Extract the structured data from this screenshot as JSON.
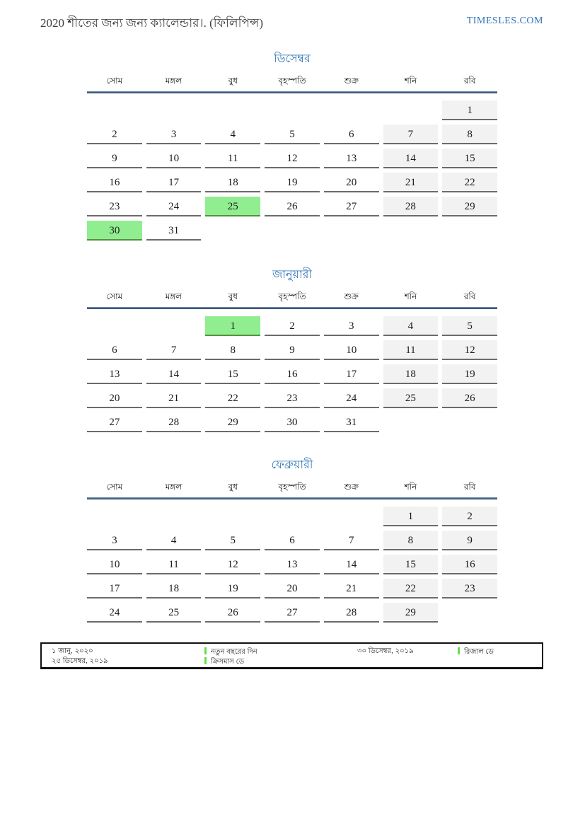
{
  "header": {
    "title": "2020 শীতের জন্য জন্য ক্যালেন্ডার।. (ফিলিপিন্স)",
    "site": "TIMESLES.COM"
  },
  "weekdays": [
    "সোম",
    "মঙ্গল",
    "বুধ",
    "বৃহস্পতি",
    "শুক্র",
    "শনি",
    "রবি"
  ],
  "months": [
    {
      "title": "ডিসেম্বর",
      "rows": [
        [
          null,
          null,
          null,
          null,
          null,
          null,
          {
            "d": "1",
            "t": "w"
          }
        ],
        [
          {
            "d": "2",
            "t": "n"
          },
          {
            "d": "3",
            "t": "n"
          },
          {
            "d": "4",
            "t": "n"
          },
          {
            "d": "5",
            "t": "n"
          },
          {
            "d": "6",
            "t": "n"
          },
          {
            "d": "7",
            "t": "w"
          },
          {
            "d": "8",
            "t": "w"
          }
        ],
        [
          {
            "d": "9",
            "t": "n"
          },
          {
            "d": "10",
            "t": "n"
          },
          {
            "d": "11",
            "t": "n"
          },
          {
            "d": "12",
            "t": "n"
          },
          {
            "d": "13",
            "t": "n"
          },
          {
            "d": "14",
            "t": "w"
          },
          {
            "d": "15",
            "t": "w"
          }
        ],
        [
          {
            "d": "16",
            "t": "n"
          },
          {
            "d": "17",
            "t": "n"
          },
          {
            "d": "18",
            "t": "n"
          },
          {
            "d": "19",
            "t": "n"
          },
          {
            "d": "20",
            "t": "n"
          },
          {
            "d": "21",
            "t": "w"
          },
          {
            "d": "22",
            "t": "w"
          }
        ],
        [
          {
            "d": "23",
            "t": "n"
          },
          {
            "d": "24",
            "t": "n"
          },
          {
            "d": "25",
            "t": "h"
          },
          {
            "d": "26",
            "t": "n"
          },
          {
            "d": "27",
            "t": "n"
          },
          {
            "d": "28",
            "t": "w"
          },
          {
            "d": "29",
            "t": "w"
          }
        ],
        [
          {
            "d": "30",
            "t": "h"
          },
          {
            "d": "31",
            "t": "n"
          },
          null,
          null,
          null,
          null,
          null
        ]
      ]
    },
    {
      "title": "জানুয়ারী",
      "rows": [
        [
          null,
          null,
          {
            "d": "1",
            "t": "h"
          },
          {
            "d": "2",
            "t": "n"
          },
          {
            "d": "3",
            "t": "n"
          },
          {
            "d": "4",
            "t": "w"
          },
          {
            "d": "5",
            "t": "w"
          }
        ],
        [
          {
            "d": "6",
            "t": "n"
          },
          {
            "d": "7",
            "t": "n"
          },
          {
            "d": "8",
            "t": "n"
          },
          {
            "d": "9",
            "t": "n"
          },
          {
            "d": "10",
            "t": "n"
          },
          {
            "d": "11",
            "t": "w"
          },
          {
            "d": "12",
            "t": "w"
          }
        ],
        [
          {
            "d": "13",
            "t": "n"
          },
          {
            "d": "14",
            "t": "n"
          },
          {
            "d": "15",
            "t": "n"
          },
          {
            "d": "16",
            "t": "n"
          },
          {
            "d": "17",
            "t": "n"
          },
          {
            "d": "18",
            "t": "w"
          },
          {
            "d": "19",
            "t": "w"
          }
        ],
        [
          {
            "d": "20",
            "t": "n"
          },
          {
            "d": "21",
            "t": "n"
          },
          {
            "d": "22",
            "t": "n"
          },
          {
            "d": "23",
            "t": "n"
          },
          {
            "d": "24",
            "t": "n"
          },
          {
            "d": "25",
            "t": "w"
          },
          {
            "d": "26",
            "t": "w"
          }
        ],
        [
          {
            "d": "27",
            "t": "n"
          },
          {
            "d": "28",
            "t": "n"
          },
          {
            "d": "29",
            "t": "n"
          },
          {
            "d": "30",
            "t": "n"
          },
          {
            "d": "31",
            "t": "n"
          },
          null,
          null
        ]
      ]
    },
    {
      "title": "ফেব্রুয়ারী",
      "rows": [
        [
          null,
          null,
          null,
          null,
          null,
          {
            "d": "1",
            "t": "w"
          },
          {
            "d": "2",
            "t": "w"
          }
        ],
        [
          {
            "d": "3",
            "t": "n"
          },
          {
            "d": "4",
            "t": "n"
          },
          {
            "d": "5",
            "t": "n"
          },
          {
            "d": "6",
            "t": "n"
          },
          {
            "d": "7",
            "t": "n"
          },
          {
            "d": "8",
            "t": "w"
          },
          {
            "d": "9",
            "t": "w"
          }
        ],
        [
          {
            "d": "10",
            "t": "n"
          },
          {
            "d": "11",
            "t": "n"
          },
          {
            "d": "12",
            "t": "n"
          },
          {
            "d": "13",
            "t": "n"
          },
          {
            "d": "14",
            "t": "n"
          },
          {
            "d": "15",
            "t": "w"
          },
          {
            "d": "16",
            "t": "w"
          }
        ],
        [
          {
            "d": "17",
            "t": "n"
          },
          {
            "d": "18",
            "t": "n"
          },
          {
            "d": "19",
            "t": "n"
          },
          {
            "d": "20",
            "t": "n"
          },
          {
            "d": "21",
            "t": "n"
          },
          {
            "d": "22",
            "t": "w"
          },
          {
            "d": "23",
            "t": "w"
          }
        ],
        [
          {
            "d": "24",
            "t": "n"
          },
          {
            "d": "25",
            "t": "n"
          },
          {
            "d": "26",
            "t": "n"
          },
          {
            "d": "27",
            "t": "n"
          },
          {
            "d": "28",
            "t": "n"
          },
          {
            "d": "29",
            "t": "w"
          },
          null
        ]
      ]
    }
  ],
  "legend": {
    "entries": [
      {
        "date": "১ জানু, ২০২০",
        "label": "নতুন বছরের দিন"
      },
      {
        "date": "২৫ ডিসেম্বর, ২০১৯",
        "label": "ক্রিসমাস ডে"
      },
      {
        "date": "৩০ ডিসেম্বর, ২০১৯",
        "label": "রিজাল ডে"
      }
    ]
  },
  "colors": {
    "accent_blue": "#2e75b6",
    "rule_blue": "#33506f",
    "holiday_green": "#90ee90",
    "legend_bar_green": "#66df4a",
    "weekend_gray": "#f2f2f2",
    "cell_border_gray": "#6b6b6b"
  }
}
